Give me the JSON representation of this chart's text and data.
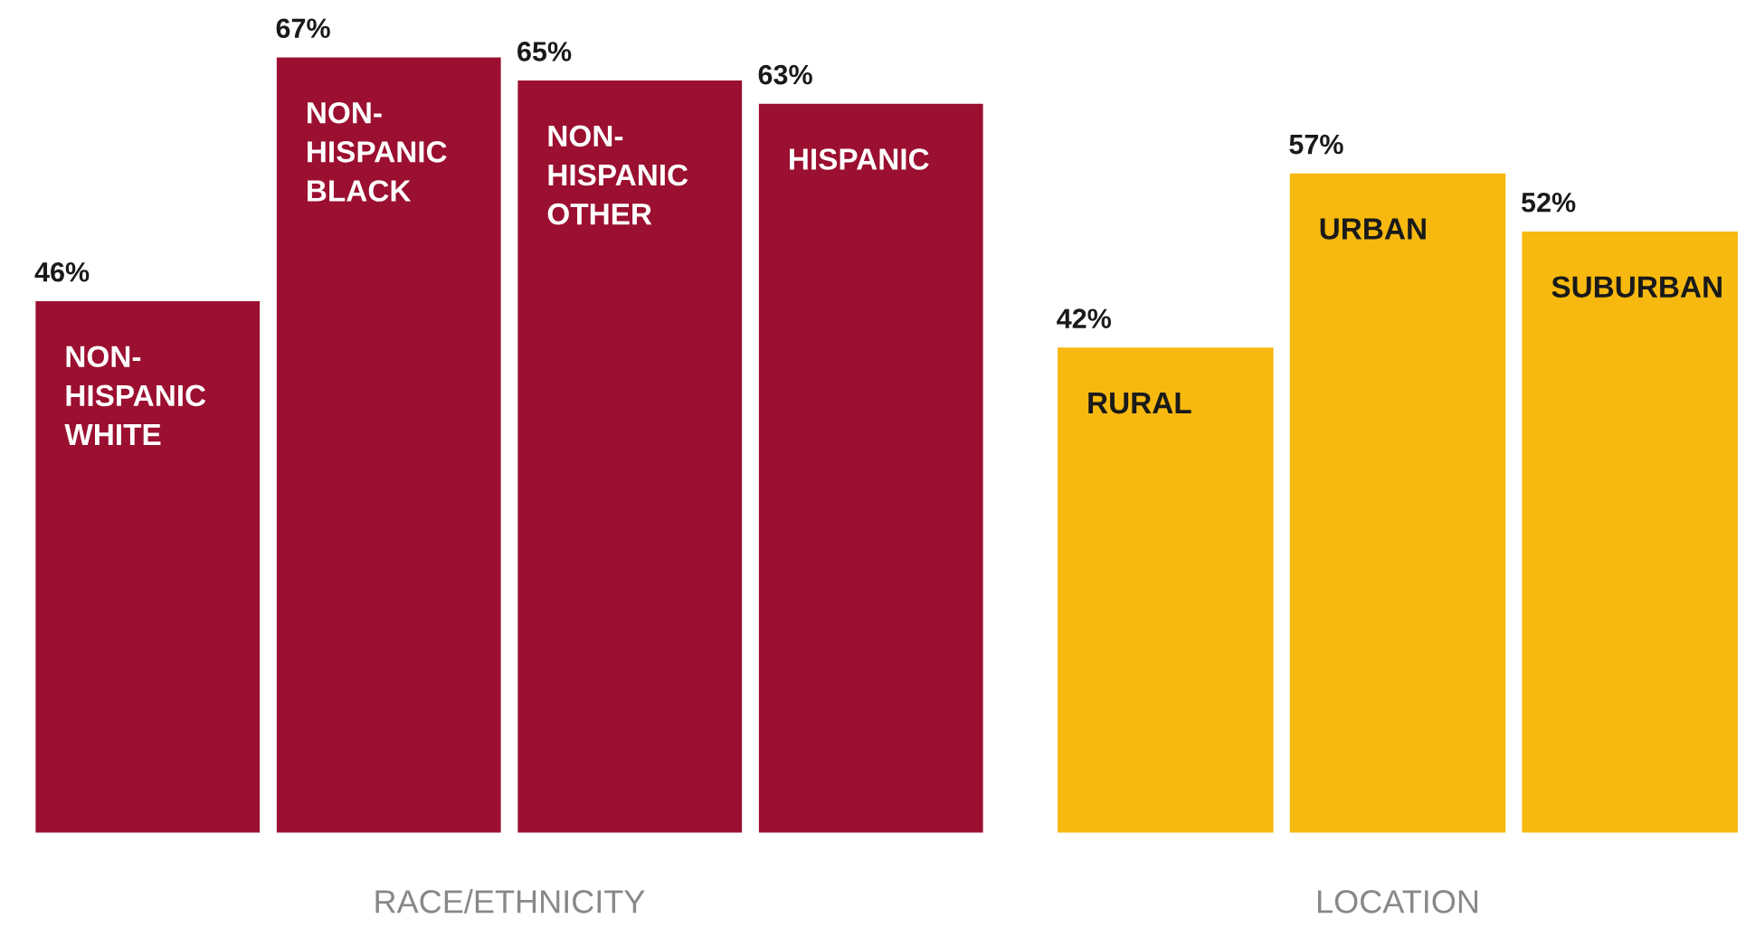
{
  "chart_data": [
    {
      "type": "bar",
      "xlabel": "RACE/ETHNICITY",
      "categories": [
        "NON-\nHISPANIC\nWHITE",
        "NON-\nHISPANIC\nBLACK",
        "NON-\nHISPANIC\nOTHER",
        "HISPANIC"
      ],
      "values": [
        46,
        67,
        65,
        63
      ],
      "color": "#9b0f30",
      "value_labels": [
        "46%",
        "67%",
        "65%",
        "63%"
      ],
      "tick_labels": false
    },
    {
      "type": "bar",
      "xlabel": "LOCATION",
      "categories": [
        "RURAL",
        "URBAN",
        "SUBURBAN"
      ],
      "values": [
        42,
        57,
        52
      ],
      "color": "#f7b90f",
      "value_labels": [
        "42%",
        "57%",
        "52%"
      ],
      "tick_labels": false
    }
  ]
}
